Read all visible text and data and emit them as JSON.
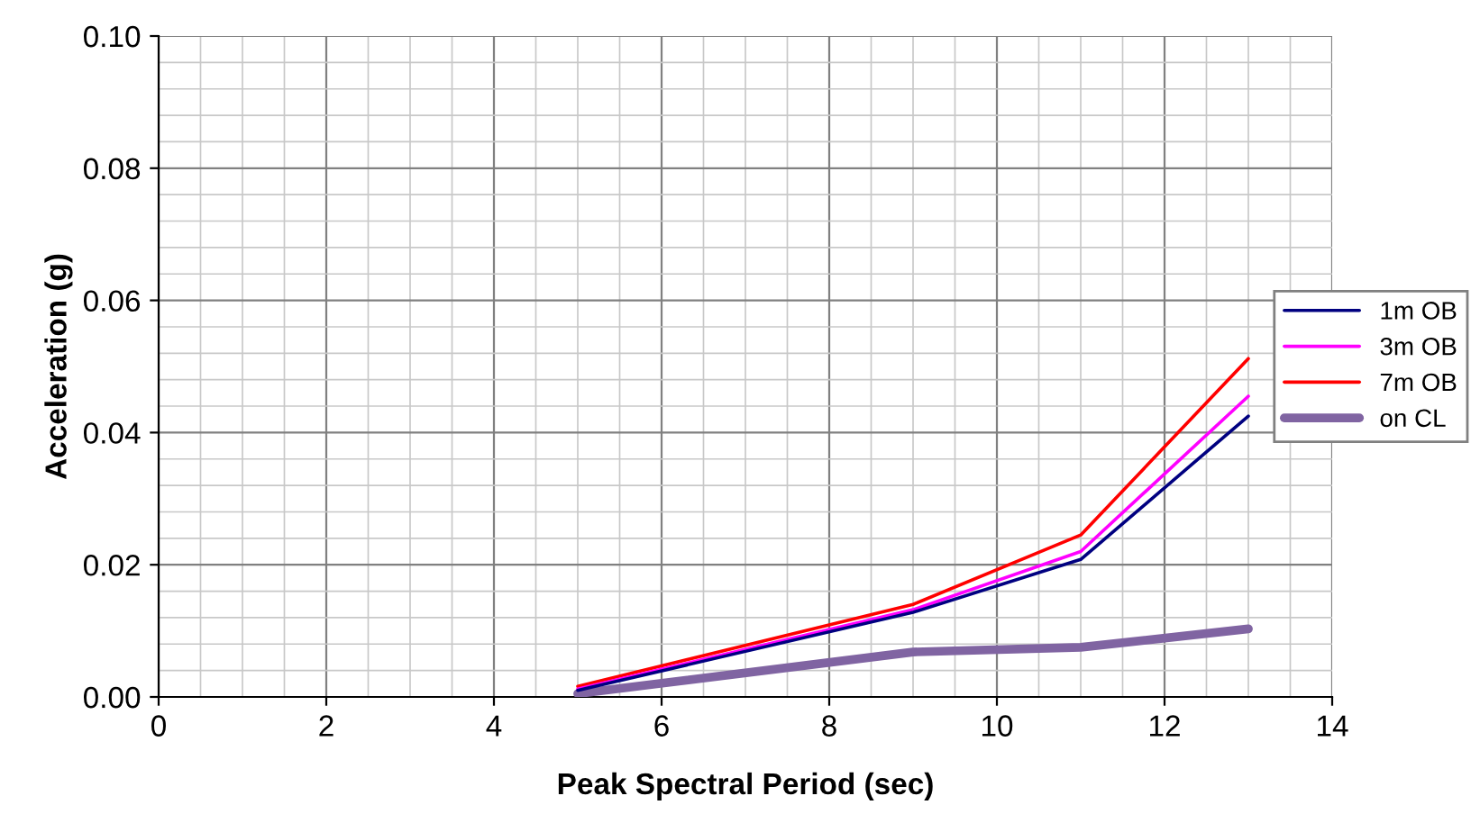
{
  "chart_data": {
    "type": "line",
    "xlabel": "Peak Spectral Period (sec)",
    "ylabel": "Acceleration (g)",
    "x": [
      5,
      9,
      11,
      13
    ],
    "series": [
      {
        "name": "1m OB",
        "color": "#000080",
        "values": [
          0.001,
          0.0128,
          0.0208,
          0.0425
        ]
      },
      {
        "name": "3m OB",
        "color": "#ff00ff",
        "values": [
          0.0012,
          0.0132,
          0.022,
          0.0455
        ]
      },
      {
        "name": "7m OB",
        "color": "#ff0000",
        "values": [
          0.0016,
          0.014,
          0.0245,
          0.0512
        ]
      },
      {
        "name": "on CL",
        "color": "#8064a2",
        "values": [
          0.0005,
          0.0068,
          0.0075,
          0.0103
        ]
      }
    ],
    "xlim": [
      0,
      14
    ],
    "xticks": [
      0,
      2,
      4,
      6,
      8,
      10,
      12,
      14
    ],
    "ylim": [
      0,
      0.1
    ],
    "yticks": [
      {
        "value": 0,
        "label": "0.00"
      },
      {
        "value": 0.02,
        "label": "0.02"
      },
      {
        "value": 0.04,
        "label": "0.04"
      },
      {
        "value": 0.06,
        "label": "0.06"
      },
      {
        "value": 0.08,
        "label": "0.08"
      },
      {
        "value": 0.1,
        "label": "0.10"
      }
    ],
    "grid": true,
    "legend": "right",
    "marker": "none",
    "line_style": "solid"
  }
}
